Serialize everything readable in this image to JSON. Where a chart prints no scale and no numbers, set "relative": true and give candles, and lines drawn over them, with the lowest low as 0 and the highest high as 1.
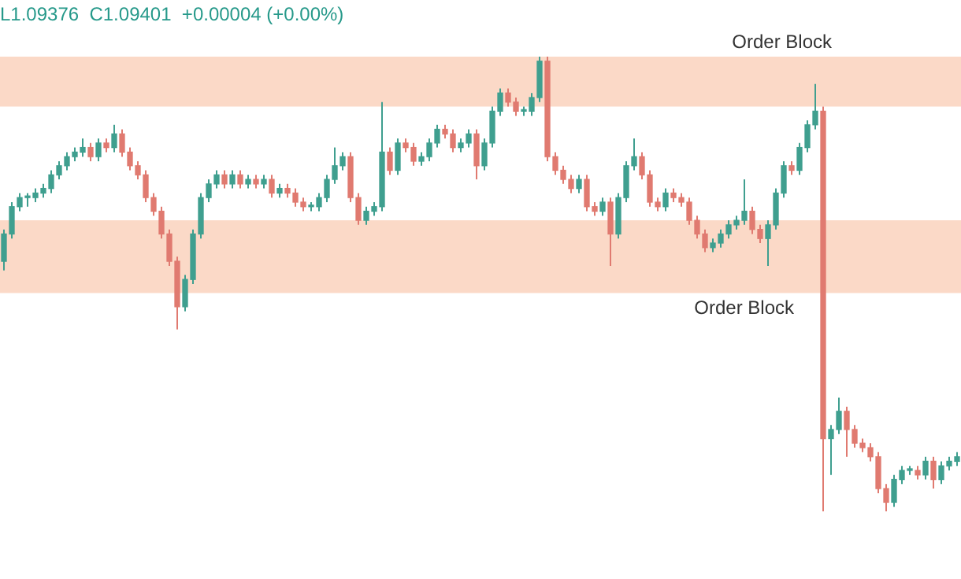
{
  "chart_data": {
    "type": "candlestick",
    "relative": true,
    "categories": [
      null,
      null,
      null,
      null,
      null,
      null,
      null,
      null,
      null,
      null,
      null,
      null,
      null,
      null,
      null,
      null,
      null,
      null,
      null,
      null,
      null,
      null,
      null,
      null,
      null,
      null,
      null,
      null,
      null,
      null,
      null,
      null,
      null,
      null,
      null,
      null,
      null,
      null,
      null,
      null,
      null,
      null,
      null,
      null,
      null,
      null,
      null,
      null,
      null,
      null,
      null,
      null,
      null,
      null,
      null,
      null,
      null,
      null,
      null,
      null,
      null,
      null,
      null,
      null,
      null,
      null,
      null,
      null,
      null,
      null,
      null,
      null,
      null,
      null,
      null,
      null,
      null,
      null,
      null,
      null,
      null,
      null,
      null,
      null,
      null,
      null,
      null,
      null,
      null,
      null,
      null,
      null,
      null,
      null,
      null,
      null,
      null,
      null,
      null,
      null,
      null,
      null,
      null,
      null,
      null,
      null,
      null,
      null,
      null,
      null,
      null,
      null,
      null,
      null,
      null,
      null,
      null,
      null,
      null,
      null,
      null,
      null
    ],
    "ohlc": [
      [
        0.55,
        0.62,
        0.53,
        0.61
      ],
      [
        0.61,
        0.68,
        0.6,
        0.67
      ],
      [
        0.67,
        0.7,
        0.66,
        0.69
      ],
      [
        0.69,
        0.7,
        0.67,
        0.69
      ],
      [
        0.69,
        0.71,
        0.68,
        0.7
      ],
      [
        0.7,
        0.72,
        0.69,
        0.71
      ],
      [
        0.71,
        0.75,
        0.7,
        0.74
      ],
      [
        0.74,
        0.77,
        0.73,
        0.76
      ],
      [
        0.76,
        0.79,
        0.75,
        0.78
      ],
      [
        0.78,
        0.8,
        0.77,
        0.79
      ],
      [
        0.79,
        0.82,
        0.78,
        0.8
      ],
      [
        0.8,
        0.81,
        0.77,
        0.78
      ],
      [
        0.78,
        0.82,
        0.77,
        0.81
      ],
      [
        0.81,
        0.82,
        0.79,
        0.8
      ],
      [
        0.8,
        0.85,
        0.79,
        0.83
      ],
      [
        0.83,
        0.84,
        0.78,
        0.79
      ],
      [
        0.79,
        0.8,
        0.75,
        0.76
      ],
      [
        0.76,
        0.77,
        0.73,
        0.74
      ],
      [
        0.74,
        0.75,
        0.68,
        0.69
      ],
      [
        0.69,
        0.7,
        0.65,
        0.66
      ],
      [
        0.66,
        0.67,
        0.6,
        0.61
      ],
      [
        0.61,
        0.62,
        0.54,
        0.55
      ],
      [
        0.55,
        0.56,
        0.4,
        0.45
      ],
      [
        0.45,
        0.52,
        0.44,
        0.51
      ],
      [
        0.51,
        0.62,
        0.5,
        0.61
      ],
      [
        0.61,
        0.7,
        0.6,
        0.69
      ],
      [
        0.69,
        0.73,
        0.68,
        0.72
      ],
      [
        0.72,
        0.75,
        0.71,
        0.74
      ],
      [
        0.74,
        0.75,
        0.71,
        0.72
      ],
      [
        0.72,
        0.75,
        0.71,
        0.74
      ],
      [
        0.74,
        0.75,
        0.71,
        0.72
      ],
      [
        0.72,
        0.74,
        0.71,
        0.73
      ],
      [
        0.73,
        0.74,
        0.71,
        0.72
      ],
      [
        0.72,
        0.74,
        0.71,
        0.73
      ],
      [
        0.73,
        0.74,
        0.69,
        0.7
      ],
      [
        0.7,
        0.72,
        0.69,
        0.71
      ],
      [
        0.71,
        0.72,
        0.69,
        0.7
      ],
      [
        0.7,
        0.71,
        0.67,
        0.68
      ],
      [
        0.68,
        0.69,
        0.66,
        0.67
      ],
      [
        0.67,
        0.68,
        0.66,
        0.67
      ],
      [
        0.67,
        0.7,
        0.66,
        0.69
      ],
      [
        0.69,
        0.74,
        0.68,
        0.73
      ],
      [
        0.73,
        0.8,
        0.72,
        0.76
      ],
      [
        0.76,
        0.79,
        0.75,
        0.78
      ],
      [
        0.78,
        0.79,
        0.68,
        0.69
      ],
      [
        0.69,
        0.7,
        0.63,
        0.64
      ],
      [
        0.64,
        0.67,
        0.63,
        0.66
      ],
      [
        0.66,
        0.68,
        0.65,
        0.67
      ],
      [
        0.67,
        0.9,
        0.66,
        0.79
      ],
      [
        0.79,
        0.8,
        0.74,
        0.75
      ],
      [
        0.75,
        0.82,
        0.74,
        0.81
      ],
      [
        0.81,
        0.82,
        0.79,
        0.8
      ],
      [
        0.8,
        0.81,
        0.76,
        0.77
      ],
      [
        0.77,
        0.79,
        0.76,
        0.78
      ],
      [
        0.78,
        0.82,
        0.77,
        0.81
      ],
      [
        0.81,
        0.85,
        0.8,
        0.84
      ],
      [
        0.84,
        0.85,
        0.82,
        0.83
      ],
      [
        0.83,
        0.84,
        0.79,
        0.8
      ],
      [
        0.8,
        0.82,
        0.79,
        0.81
      ],
      [
        0.81,
        0.84,
        0.8,
        0.83
      ],
      [
        0.83,
        0.84,
        0.73,
        0.76
      ],
      [
        0.76,
        0.82,
        0.75,
        0.81
      ],
      [
        0.81,
        0.89,
        0.8,
        0.88
      ],
      [
        0.88,
        0.93,
        0.87,
        0.92
      ],
      [
        0.92,
        0.93,
        0.89,
        0.9
      ],
      [
        0.9,
        0.91,
        0.87,
        0.88
      ],
      [
        0.88,
        0.89,
        0.87,
        0.88
      ],
      [
        0.88,
        0.92,
        0.87,
        0.91
      ],
      [
        0.91,
        1.0,
        0.9,
        0.99
      ],
      [
        0.99,
        1.0,
        0.77,
        0.78
      ],
      [
        0.78,
        0.79,
        0.74,
        0.75
      ],
      [
        0.75,
        0.76,
        0.72,
        0.73
      ],
      [
        0.73,
        0.74,
        0.7,
        0.71
      ],
      [
        0.71,
        0.74,
        0.7,
        0.73
      ],
      [
        0.73,
        0.74,
        0.66,
        0.67
      ],
      [
        0.67,
        0.68,
        0.65,
        0.66
      ],
      [
        0.66,
        0.69,
        0.65,
        0.68
      ],
      [
        0.68,
        0.69,
        0.54,
        0.61
      ],
      [
        0.61,
        0.7,
        0.6,
        0.69
      ],
      [
        0.69,
        0.77,
        0.68,
        0.76
      ],
      [
        0.76,
        0.82,
        0.75,
        0.78
      ],
      [
        0.78,
        0.79,
        0.73,
        0.74
      ],
      [
        0.74,
        0.75,
        0.67,
        0.68
      ],
      [
        0.68,
        0.69,
        0.66,
        0.67
      ],
      [
        0.67,
        0.71,
        0.66,
        0.7
      ],
      [
        0.7,
        0.71,
        0.68,
        0.69
      ],
      [
        0.69,
        0.7,
        0.67,
        0.68
      ],
      [
        0.68,
        0.69,
        0.63,
        0.64
      ],
      [
        0.64,
        0.65,
        0.6,
        0.61
      ],
      [
        0.61,
        0.62,
        0.57,
        0.58
      ],
      [
        0.58,
        0.6,
        0.57,
        0.59
      ],
      [
        0.59,
        0.62,
        0.58,
        0.61
      ],
      [
        0.61,
        0.64,
        0.6,
        0.63
      ],
      [
        0.63,
        0.65,
        0.62,
        0.64
      ],
      [
        0.64,
        0.73,
        0.63,
        0.66
      ],
      [
        0.66,
        0.67,
        0.61,
        0.62
      ],
      [
        0.62,
        0.63,
        0.59,
        0.6
      ],
      [
        0.6,
        0.64,
        0.54,
        0.63
      ],
      [
        0.63,
        0.71,
        0.62,
        0.7
      ],
      [
        0.7,
        0.77,
        0.69,
        0.76
      ],
      [
        0.76,
        0.77,
        0.74,
        0.75
      ],
      [
        0.75,
        0.81,
        0.74,
        0.8
      ],
      [
        0.8,
        0.86,
        0.79,
        0.85
      ],
      [
        0.85,
        0.94,
        0.84,
        0.88
      ],
      [
        0.88,
        0.89,
        0.0,
        0.16
      ],
      [
        0.16,
        0.19,
        0.08,
        0.18
      ],
      [
        0.18,
        0.25,
        0.17,
        0.22
      ],
      [
        0.22,
        0.23,
        0.12,
        0.18
      ],
      [
        0.18,
        0.19,
        0.14,
        0.15
      ],
      [
        0.15,
        0.16,
        0.13,
        0.14
      ],
      [
        0.14,
        0.15,
        0.11,
        0.12
      ],
      [
        0.12,
        0.13,
        0.04,
        0.05
      ],
      [
        0.05,
        0.06,
        0.0,
        0.02
      ],
      [
        0.02,
        0.08,
        0.01,
        0.07
      ],
      [
        0.07,
        0.1,
        0.06,
        0.09
      ],
      [
        0.09,
        0.1,
        0.08,
        0.09
      ],
      [
        0.09,
        0.1,
        0.07,
        0.08
      ],
      [
        0.08,
        0.12,
        0.07,
        0.11
      ],
      [
        0.11,
        0.12,
        0.05,
        0.07
      ],
      [
        0.07,
        0.11,
        0.06,
        0.1
      ],
      [
        0.1,
        0.12,
        0.09,
        0.11
      ],
      [
        0.11,
        0.13,
        0.1,
        0.12
      ]
    ],
    "colors": [
      "#3f9f8f",
      "#3f9f8f",
      "#3f9f8f",
      "#3f9f8f",
      "#3f9f8f",
      "#3f9f8f",
      "#3f9f8f",
      "#3f9f8f",
      "#3f9f8f",
      "#3f9f8f",
      "#3f9f8f",
      "#e07a70",
      "#3f9f8f",
      "#e07a70",
      "#3f9f8f",
      "#e07a70",
      "#e07a70",
      "#e07a70",
      "#e07a70",
      "#e07a70",
      "#e07a70",
      "#e07a70",
      "#e07a70",
      "#3f9f8f",
      "#3f9f8f",
      "#3f9f8f",
      "#3f9f8f",
      "#3f9f8f",
      "#e07a70",
      "#3f9f8f",
      "#e07a70",
      "#3f9f8f",
      "#e07a70",
      "#3f9f8f",
      "#e07a70",
      "#3f9f8f",
      "#e07a70",
      "#e07a70",
      "#e07a70",
      "#3f9f8f",
      "#3f9f8f",
      "#3f9f8f",
      "#3f9f8f",
      "#3f9f8f",
      "#e07a70",
      "#e07a70",
      "#3f9f8f",
      "#3f9f8f",
      "#3f9f8f",
      "#e07a70",
      "#3f9f8f",
      "#e07a70",
      "#e07a70",
      "#3f9f8f",
      "#3f9f8f",
      "#3f9f8f",
      "#e07a70",
      "#e07a70",
      "#3f9f8f",
      "#3f9f8f",
      "#e07a70",
      "#3f9f8f",
      "#3f9f8f",
      "#3f9f8f",
      "#e07a70",
      "#e07a70",
      "#3f9f8f",
      "#3f9f8f",
      "#3f9f8f",
      "#e07a70",
      "#e07a70",
      "#e07a70",
      "#e07a70",
      "#3f9f8f",
      "#e07a70",
      "#e07a70",
      "#3f9f8f",
      "#e07a70",
      "#3f9f8f",
      "#3f9f8f",
      "#3f9f8f",
      "#e07a70",
      "#e07a70",
      "#e07a70",
      "#3f9f8f",
      "#e07a70",
      "#e07a70",
      "#e07a70",
      "#e07a70",
      "#e07a70",
      "#3f9f8f",
      "#3f9f8f",
      "#3f9f8f",
      "#3f9f8f",
      "#3f9f8f",
      "#e07a70",
      "#e07a70",
      "#3f9f8f",
      "#3f9f8f",
      "#3f9f8f",
      "#e07a70",
      "#3f9f8f",
      "#3f9f8f",
      "#3f9f8f",
      "#e07a70",
      "#3f9f8f",
      "#3f9f8f",
      "#e07a70",
      "#e07a70",
      "#e07a70",
      "#e07a70",
      "#e07a70",
      "#e07a70",
      "#3f9f8f",
      "#3f9f8f",
      "#3f9f8f",
      "#e07a70",
      "#3f9f8f",
      "#e07a70",
      "#3f9f8f",
      "#3f9f8f",
      "#3f9f8f"
    ],
    "bands": [
      {
        "axis": "y",
        "from": 0.89,
        "to": 1.0,
        "label": "Order Block",
        "color": "#fbd9c7"
      },
      {
        "axis": "y",
        "from": 0.48,
        "to": 0.64,
        "label": "Order Block",
        "color": "#fbd9c7"
      }
    ],
    "annotations": [
      "L1.09376  C1.09401  +0.00004 (+0.00%)"
    ]
  }
}
